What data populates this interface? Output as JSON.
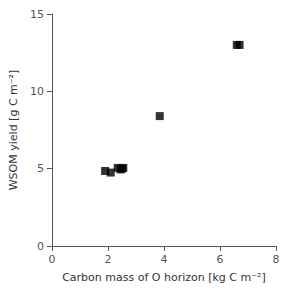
{
  "chart_data": {
    "type": "scatter",
    "x": [
      1.9,
      2.1,
      2.35,
      2.45,
      2.5,
      2.55,
      3.85,
      6.6,
      6.7
    ],
    "values": [
      4.85,
      4.75,
      5.05,
      4.95,
      5.0,
      5.05,
      8.4,
      13.0,
      13.0
    ],
    "xlabel": "Carbon mass of O horizon [kg C m⁻²]",
    "ylabel": "WSOM yield [g C m⁻²]",
    "xlim": [
      0,
      8
    ],
    "ylim": [
      0,
      15
    ],
    "xticks": [
      0,
      2,
      4,
      6,
      8
    ],
    "yticks": [
      0,
      5,
      10,
      15
    ],
    "color": "black",
    "marker": "square",
    "grid": false
  }
}
